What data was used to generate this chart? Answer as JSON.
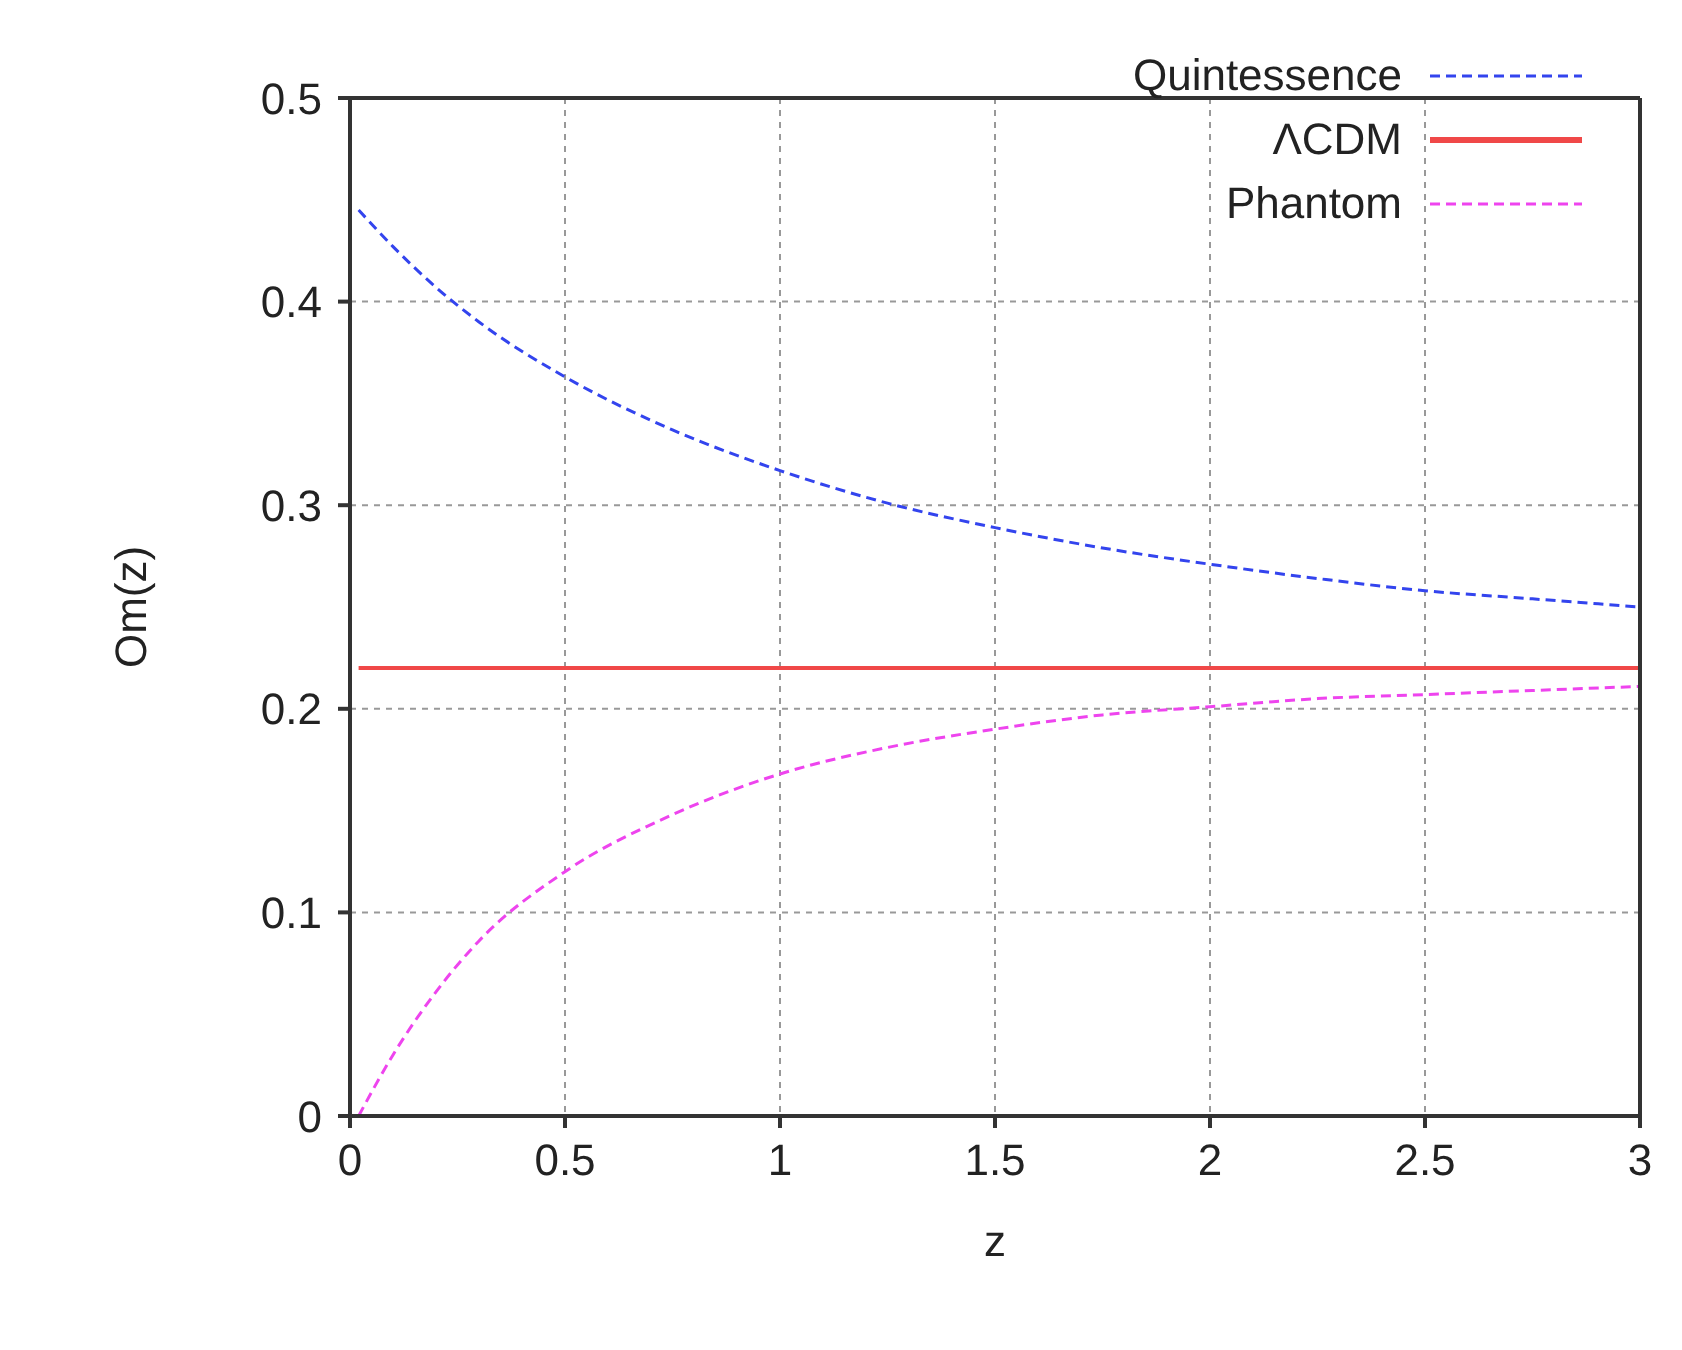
{
  "chart_data": {
    "type": "line",
    "xlabel": "z",
    "ylabel": "Om(z)",
    "x": [
      0.02,
      0.1,
      0.2,
      0.3,
      0.5,
      0.75,
      1.0,
      1.25,
      1.5,
      1.75,
      2.0,
      2.25,
      2.5,
      2.75,
      3.0
    ],
    "series": [
      {
        "name": "Quintessence",
        "color": "#3344ee",
        "line_style": "dashed",
        "values": [
          0.445,
          0.427,
          0.407,
          0.39,
          0.363,
          0.337,
          0.317,
          0.301,
          0.289,
          0.279,
          0.271,
          0.264,
          0.258,
          0.254,
          0.25
        ]
      },
      {
        "name": "ΛCDM",
        "color": "#f04848",
        "line_style": "solid",
        "values": [
          0.22,
          0.22,
          0.22,
          0.22,
          0.22,
          0.22,
          0.22,
          0.22,
          0.22,
          0.22,
          0.22,
          0.22,
          0.22,
          0.22,
          0.22
        ]
      },
      {
        "name": "Phantom",
        "color": "#ee44ee",
        "line_style": "dashed",
        "values": [
          0.0,
          0.03,
          0.061,
          0.086,
          0.12,
          0.148,
          0.168,
          0.181,
          0.19,
          0.197,
          0.201,
          0.205,
          0.207,
          0.209,
          0.211
        ]
      }
    ],
    "xlim": [
      0,
      3
    ],
    "xticks": [
      0,
      0.5,
      1,
      1.5,
      2,
      2.5,
      3
    ],
    "ylim": [
      0,
      0.5
    ],
    "yticks": [
      0,
      0.1,
      0.2,
      0.3,
      0.4,
      0.5
    ],
    "grid": true,
    "legend": "top right",
    "marker": "none"
  }
}
